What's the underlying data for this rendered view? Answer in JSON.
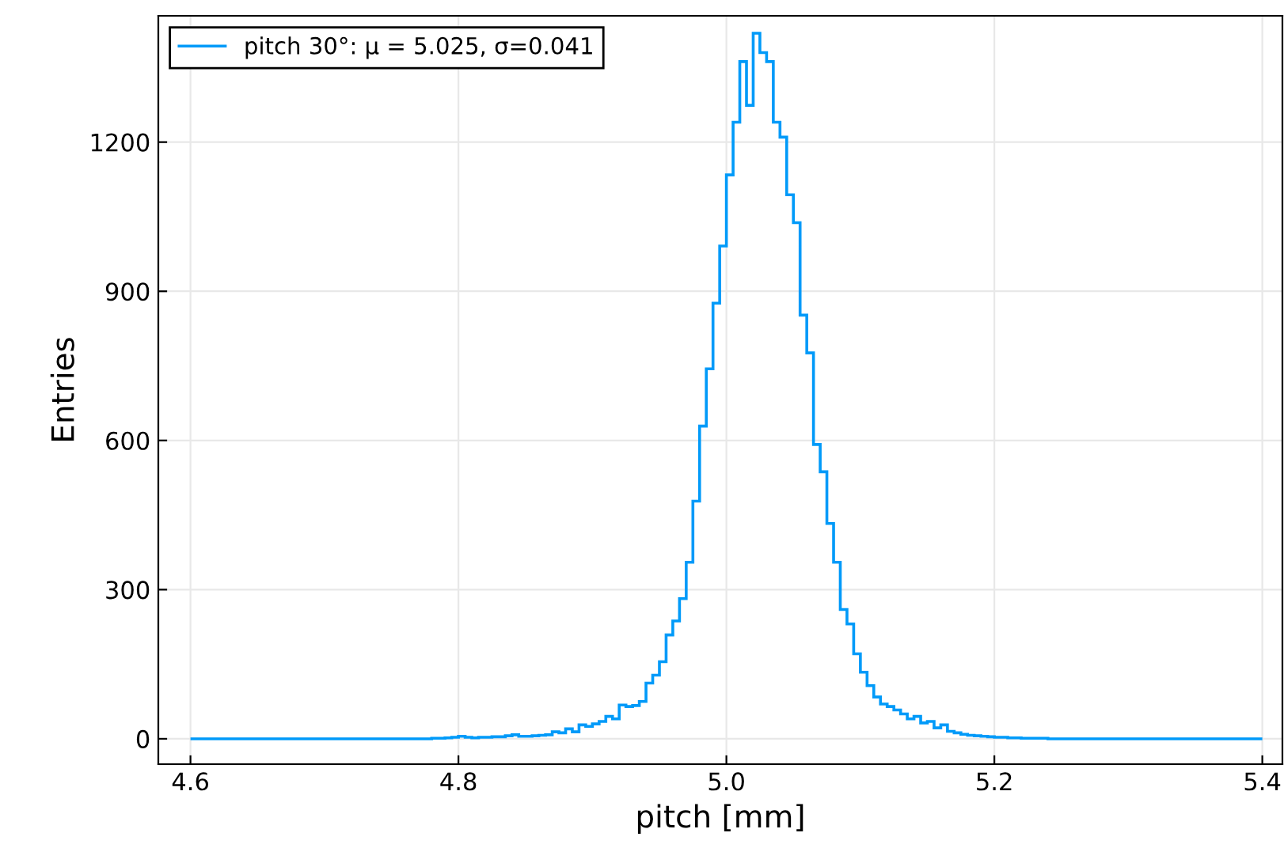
{
  "chart_data": {
    "type": "histogram",
    "xlabel": "pitch [mm]",
    "ylabel": "Entries",
    "bins": [
      4.6,
      4.605,
      4.61,
      4.615,
      4.62,
      4.625,
      4.63,
      4.635,
      4.64,
      4.645,
      4.65,
      4.655,
      4.66,
      4.665,
      4.67,
      4.675,
      4.68,
      4.685,
      4.69,
      4.695,
      4.7,
      4.705,
      4.71,
      4.715,
      4.72,
      4.725,
      4.73,
      4.735,
      4.74,
      4.745,
      4.75,
      4.755,
      4.76,
      4.765,
      4.77,
      4.775,
      4.78,
      4.785,
      4.79,
      4.795,
      4.8,
      4.805,
      4.81,
      4.815,
      4.82,
      4.825,
      4.83,
      4.835,
      4.84,
      4.845,
      4.85,
      4.855,
      4.86,
      4.865,
      4.87,
      4.875,
      4.88,
      4.885,
      4.89,
      4.895,
      4.9,
      4.905,
      4.91,
      4.915,
      4.92,
      4.925,
      4.93,
      4.935,
      4.94,
      4.945,
      4.95,
      4.955,
      4.96,
      4.965,
      4.97,
      4.975,
      4.98,
      4.985,
      4.99,
      4.995,
      5.0,
      5.005,
      5.01,
      5.015,
      5.02,
      5.025,
      5.03,
      5.035,
      5.04,
      5.045,
      5.05,
      5.055,
      5.06,
      5.065,
      5.07,
      5.075,
      5.08,
      5.085,
      5.09,
      5.095,
      5.1,
      5.105,
      5.11,
      5.115,
      5.12,
      5.125,
      5.13,
      5.135,
      5.14,
      5.145,
      5.15,
      5.155,
      5.16,
      5.165,
      5.17,
      5.175,
      5.18,
      5.185,
      5.19,
      5.195,
      5.2,
      5.205,
      5.21,
      5.215,
      5.22,
      5.225,
      5.23,
      5.235,
      5.24,
      5.245,
      5.25,
      5.255,
      5.26,
      5.265,
      5.27,
      5.275,
      5.28,
      5.285,
      5.29,
      5.295,
      5.3,
      5.305,
      5.31,
      5.315,
      5.32,
      5.325,
      5.33,
      5.335,
      5.34,
      5.345,
      5.35,
      5.355,
      5.36,
      5.365,
      5.37,
      5.375,
      5.38,
      5.385,
      5.39,
      5.395,
      5.4
    ],
    "series": [
      {
        "name": "pitch 30°: μ = 5.025, σ=0.041",
        "color": "#009af9",
        "values": [
          0,
          0,
          0,
          0,
          0,
          0,
          0,
          0,
          0,
          0,
          0,
          0,
          0,
          0,
          0,
          0,
          0,
          0,
          0,
          0,
          0,
          0,
          0,
          0,
          0,
          0,
          0,
          0,
          0,
          0,
          0,
          0,
          0,
          0,
          0,
          0,
          1,
          1,
          2,
          3,
          5,
          3,
          2,
          3,
          3,
          4,
          4,
          6,
          8,
          5,
          5,
          6,
          7,
          8,
          14,
          12,
          20,
          14,
          28,
          25,
          30,
          35,
          45,
          40,
          68,
          65,
          67,
          75,
          112,
          128,
          155,
          209,
          237,
          282,
          355,
          478,
          629,
          744,
          876,
          991,
          1134,
          1240,
          1362,
          1274,
          1419,
          1380,
          1362,
          1240,
          1210,
          1094,
          1038,
          852,
          776,
          592,
          537,
          433,
          355,
          260,
          231,
          171,
          134,
          107,
          84,
          70,
          65,
          58,
          50,
          40,
          45,
          32,
          35,
          22,
          28,
          15,
          12,
          9,
          7,
          6,
          5,
          4,
          3,
          3,
          2,
          2,
          1,
          1,
          1,
          1,
          0,
          0,
          0,
          0,
          0,
          0,
          0,
          0,
          0,
          0,
          0,
          0,
          0,
          0,
          0,
          0,
          0,
          0,
          0,
          0,
          0,
          0,
          0,
          0,
          0,
          0,
          0,
          0,
          0,
          0,
          0,
          0
        ]
      }
    ],
    "xlim": [
      4.576,
      5.415
    ],
    "ylim": [
      -51,
      1454
    ],
    "xticks": [
      4.6,
      4.8,
      {
        "value": 5,
        "label": "5.0"
      },
      5.2,
      5.4
    ],
    "yticks": [
      0,
      300,
      600,
      900,
      1200
    ],
    "grid": true,
    "legend": "top left"
  }
}
